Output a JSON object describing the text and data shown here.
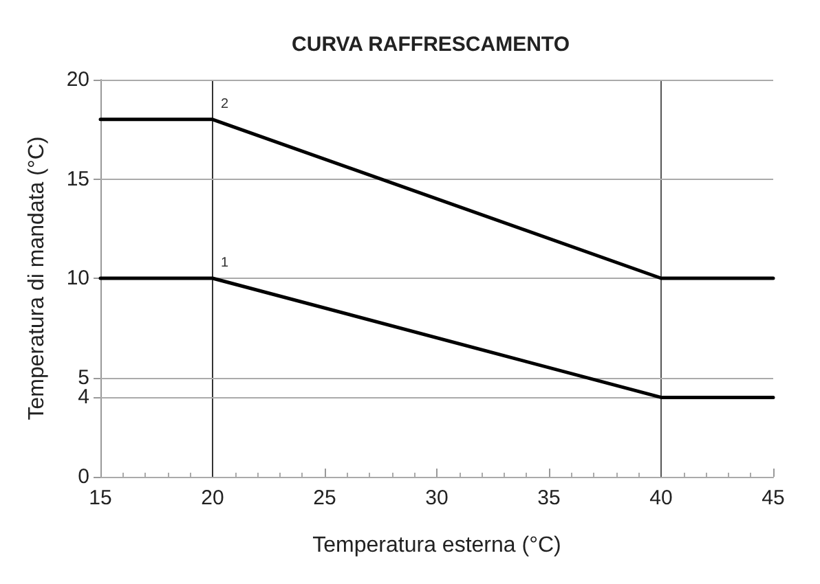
{
  "chart_data": {
    "type": "line",
    "title": "CURVA RAFFRESCAMENTO",
    "xlabel": "Temperatura esterna (°C)",
    "ylabel": "Temperatura di mandata (°C)",
    "series": [
      {
        "name": "2",
        "color": "#000000",
        "x": [
          15,
          20,
          40,
          45
        ],
        "values": [
          18,
          18,
          10,
          10
        ]
      },
      {
        "name": "1",
        "color": "#000000",
        "x": [
          15,
          20,
          40,
          45
        ],
        "values": [
          10,
          10,
          4,
          4
        ]
      }
    ],
    "xlim": [
      15,
      45
    ],
    "xticks": [
      15,
      20,
      25,
      30,
      35,
      40,
      45
    ],
    "ylim": [
      0,
      20
    ],
    "yticks": [
      0,
      4,
      5,
      10,
      15,
      20
    ],
    "grid": "y",
    "legend": false,
    "marker": "none",
    "line_style": "solid",
    "ref_lines": [
      {
        "axis": "x",
        "value": 20,
        "color": "#333333"
      },
      {
        "axis": "x",
        "value": 40,
        "color": "#555555"
      }
    ]
  }
}
